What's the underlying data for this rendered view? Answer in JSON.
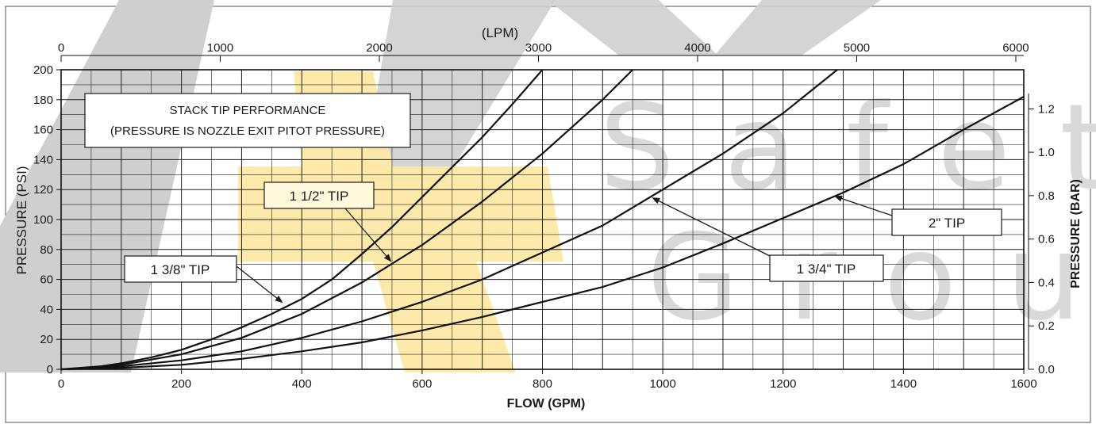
{
  "chart_data": {
    "type": "line",
    "title": "",
    "xlabel": "FLOW (GPM)",
    "ylabel": "PRESSURE (PSI)",
    "top_axis_label": "(LPM)",
    "right_axis_label": "PRESSURE (BAR)",
    "xlim": [
      0,
      1600
    ],
    "ylim": [
      0,
      200
    ],
    "top_xlim": [
      0,
      6050
    ],
    "right_ylim": [
      0,
      1.38
    ],
    "x_ticks": [
      "0",
      "200",
      "400",
      "600",
      "800",
      "1000",
      "1200",
      "1400",
      "1600"
    ],
    "y_ticks": [
      "0",
      "20",
      "40",
      "60",
      "80",
      "100",
      "120",
      "140",
      "160",
      "180",
      "200"
    ],
    "top_ticks": [
      "0",
      "1000",
      "2000",
      "3000",
      "4000",
      "5000",
      "6000"
    ],
    "right_ticks": [
      "0.0",
      "0.2",
      "0.4",
      "0.6",
      "0.8",
      "1.0",
      "1.2"
    ],
    "grid": true,
    "series": [
      {
        "name": "1 3/8\" TIP",
        "x": [
          0,
          50,
          100,
          150,
          200,
          250,
          300,
          350,
          400,
          450,
          500,
          550,
          600,
          650,
          700,
          750,
          800
        ],
        "y": [
          0,
          1,
          4,
          8,
          13,
          20,
          28,
          37,
          47,
          60,
          77,
          95,
          115,
          135,
          155,
          177,
          200
        ]
      },
      {
        "name": "1 1/2\" TIP",
        "x": [
          0,
          100,
          200,
          300,
          400,
          500,
          600,
          700,
          800,
          900,
          950
        ],
        "y": [
          0,
          3,
          10,
          21,
          37,
          58,
          83,
          112,
          144,
          180,
          200
        ]
      },
      {
        "name": "1 3/4\" TIP",
        "x": [
          0,
          100,
          200,
          300,
          400,
          500,
          600,
          700,
          800,
          900,
          1000,
          1100,
          1200,
          1290
        ],
        "y": [
          0,
          2,
          6,
          12,
          21,
          32,
          45,
          60,
          78,
          96,
          120,
          144,
          171,
          200
        ]
      },
      {
        "name": "2\" TIP",
        "x": [
          0,
          100,
          200,
          300,
          400,
          500,
          600,
          700,
          800,
          900,
          1000,
          1100,
          1200,
          1300,
          1400,
          1500,
          1600
        ],
        "y": [
          0,
          1,
          3,
          7,
          12,
          18,
          26,
          35,
          45,
          55,
          68,
          84,
          101,
          118,
          137,
          160,
          182
        ]
      }
    ],
    "annotations": {
      "title_box_line1": "STACK TIP PERFORMANCE",
      "title_box_line2": "(PRESSURE IS NOZZLE EXIT PITOT PRESSURE)",
      "label_1_1_2": "1 1/2\" TIP",
      "label_1_3_8": "1 3/8\" TIP",
      "label_1_3_4": "1 3/4\" TIP",
      "label_2": "2\" TIP"
    }
  },
  "watermark": {
    "word1": "Safety",
    "word2": "Group",
    "color_grey": "#cfcfcf",
    "color_yellow": "#fde9a6"
  }
}
